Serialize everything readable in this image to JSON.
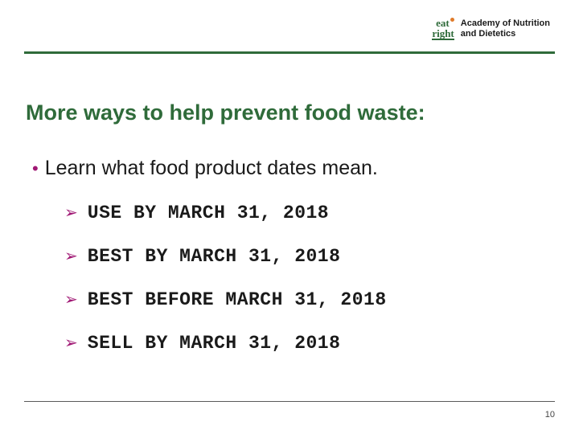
{
  "colors": {
    "green": "#2f6b3a",
    "magenta": "#a01874",
    "orange": "#e07b2a",
    "top_rule": "#2f6b3a",
    "logo_text": "#1a1a1a"
  },
  "logo": {
    "eat": "eat",
    "right": "right",
    "line1": "Academy of Nutrition",
    "line2": "and Dietetics"
  },
  "title": "More ways to help prevent food waste:",
  "subtitle": "Learn what food product dates mean.",
  "items": [
    "USE BY MARCH 31, 2018",
    "BEST BY MARCH 31, 2018",
    "BEST BEFORE MARCH 31, 2018",
    "SELL BY MARCH 31, 2018"
  ],
  "page_number": "10"
}
